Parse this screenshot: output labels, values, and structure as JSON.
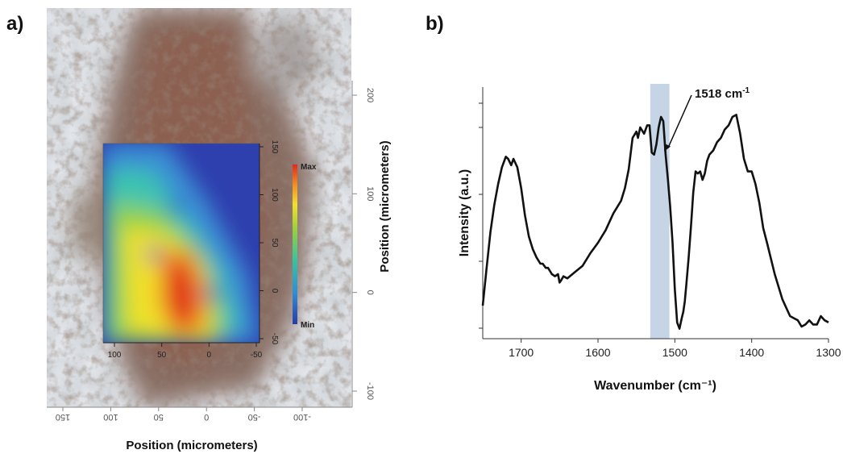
{
  "panels": {
    "a": {
      "label": "a)"
    },
    "b": {
      "label": "b)"
    }
  },
  "chart_data": [
    {
      "type": "heatmap",
      "panel": "a",
      "xlabel": "Position (micrometers)",
      "ylabel": "Position (micrometers)",
      "outer_x_ticks": [
        "150",
        "100",
        "50",
        "0",
        "-50",
        "-100"
      ],
      "outer_y_ticks": [
        "200",
        "100",
        "0",
        "-100"
      ],
      "inner_x_ticks": [
        "100",
        "50",
        "0",
        "-50"
      ],
      "inner_y_ticks": [
        "150",
        "100",
        "50",
        "0",
        "-50"
      ],
      "colorbar": {
        "max_label": "Max",
        "min_label": "Min",
        "colors": [
          "#2a3ca8",
          "#2f8fd6",
          "#36c4a0",
          "#9bd23a",
          "#f2e02a",
          "#f08a22",
          "#e02a1e"
        ]
      }
    },
    {
      "type": "line",
      "panel": "b",
      "xlabel": "Wavenumber (cm⁻¹)",
      "ylabel": "Intensity (a.u.)",
      "xlim": [
        1750,
        1300
      ],
      "x_ticks": [
        1700,
        1600,
        1500,
        1400,
        1300
      ],
      "ylim": [
        0,
        1
      ],
      "highlight": {
        "from": 1532,
        "to": 1507,
        "color": "#c6d5e6"
      },
      "annotation": {
        "text": "1518 cm",
        "superscript": "-1",
        "x": 1518,
        "y": 0.82
      },
      "series": [
        {
          "x": [
            1750,
            1745,
            1740,
            1735,
            1730,
            1725,
            1720,
            1717,
            1713,
            1710,
            1705,
            1700,
            1695,
            1690,
            1685,
            1680,
            1675,
            1672,
            1668,
            1665,
            1660,
            1656,
            1652,
            1650,
            1648,
            1645,
            1640,
            1630,
            1620,
            1610,
            1600,
            1590,
            1580,
            1570,
            1565,
            1560,
            1555,
            1550,
            1548,
            1545,
            1540,
            1536,
            1533,
            1530,
            1527,
            1524,
            1521,
            1518,
            1515,
            1512,
            1509,
            1506,
            1503,
            1500,
            1497,
            1494,
            1491,
            1489,
            1487,
            1485,
            1482,
            1479,
            1476,
            1473,
            1470,
            1467,
            1464,
            1461,
            1458,
            1455,
            1450,
            1445,
            1440,
            1435,
            1430,
            1425,
            1420,
            1415,
            1410,
            1405,
            1400,
            1395,
            1390,
            1385,
            1380,
            1370,
            1360,
            1350,
            1345,
            1340,
            1335,
            1330,
            1325,
            1320,
            1315,
            1310,
            1305,
            1300
          ],
          "y": [
            0.1,
            0.28,
            0.45,
            0.58,
            0.68,
            0.76,
            0.81,
            0.8,
            0.77,
            0.8,
            0.76,
            0.66,
            0.53,
            0.43,
            0.37,
            0.33,
            0.3,
            0.3,
            0.28,
            0.28,
            0.25,
            0.24,
            0.25,
            0.21,
            0.22,
            0.24,
            0.23,
            0.26,
            0.29,
            0.35,
            0.4,
            0.46,
            0.54,
            0.6,
            0.66,
            0.75,
            0.9,
            0.93,
            0.9,
            0.95,
            0.92,
            0.96,
            0.96,
            0.83,
            0.82,
            0.87,
            0.95,
            1.0,
            0.98,
            0.82,
            0.7,
            0.57,
            0.4,
            0.18,
            0.02,
            -0.01,
            0.04,
            0.07,
            0.12,
            0.2,
            0.33,
            0.48,
            0.64,
            0.74,
            0.73,
            0.74,
            0.7,
            0.73,
            0.79,
            0.82,
            0.84,
            0.88,
            0.9,
            0.94,
            0.96,
            1.0,
            1.01,
            0.92,
            0.8,
            0.74,
            0.74,
            0.68,
            0.59,
            0.47,
            0.4,
            0.25,
            0.13,
            0.05,
            0.04,
            0.03,
            0.0,
            0.01,
            0.03,
            0.01,
            0.01,
            0.05,
            0.03,
            0.02
          ]
        }
      ]
    }
  ]
}
